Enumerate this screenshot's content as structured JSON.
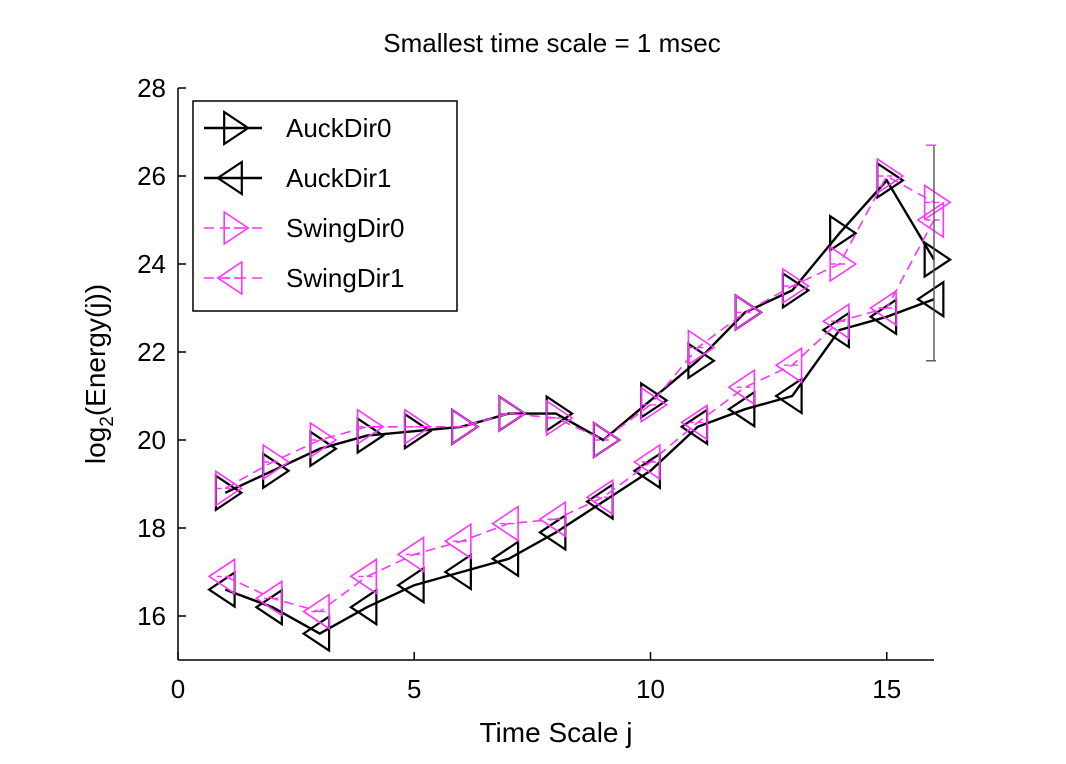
{
  "chart_data": {
    "type": "line",
    "title": "Smallest time scale = 1 msec",
    "xlabel": "Time Scale j",
    "ylabel_main": "log",
    "ylabel_sub": "2",
    "ylabel_rest": "(Energy(j))",
    "xlim": [
      0,
      16
    ],
    "ylim": [
      15,
      28
    ],
    "xticks": [
      0,
      5,
      10,
      15
    ],
    "yticks": [
      16,
      18,
      20,
      22,
      24,
      26,
      28
    ],
    "grid": false,
    "legend_position": "top-left",
    "series": [
      {
        "name": "AuckDir0",
        "color": "#000000",
        "dashed": false,
        "marker": "triangle-right",
        "x": [
          1,
          2,
          3,
          4,
          5,
          6,
          7,
          8,
          9,
          10,
          11,
          12,
          13,
          14,
          15,
          16
        ],
        "y": [
          18.8,
          19.3,
          19.8,
          20.1,
          20.2,
          20.3,
          20.6,
          20.6,
          20.0,
          20.9,
          21.8,
          22.9,
          23.4,
          24.7,
          25.9,
          24.1
        ]
      },
      {
        "name": "AuckDir1",
        "color": "#000000",
        "dashed": false,
        "marker": "triangle-left",
        "x": [
          1,
          2,
          3,
          4,
          5,
          6,
          7,
          8,
          9,
          10,
          11,
          12,
          13,
          14,
          15,
          16
        ],
        "y": [
          16.6,
          16.2,
          15.6,
          16.2,
          16.7,
          17.0,
          17.3,
          17.9,
          18.6,
          19.3,
          20.3,
          20.7,
          21.0,
          22.5,
          22.8,
          23.2
        ]
      },
      {
        "name": "SwingDir0",
        "color": "#ff33ff",
        "dashed": true,
        "marker": "triangle-right",
        "x": [
          1,
          2,
          3,
          4,
          5,
          6,
          7,
          8,
          9,
          10,
          11,
          12,
          13,
          14,
          15,
          16
        ],
        "y": [
          18.9,
          19.5,
          20.0,
          20.3,
          20.3,
          20.3,
          20.6,
          20.5,
          20.0,
          20.8,
          22.1,
          22.9,
          23.5,
          24.0,
          26.0,
          25.4
        ]
      },
      {
        "name": "SwingDir1",
        "color": "#ff33ff",
        "dashed": true,
        "marker": "triangle-left",
        "x": [
          1,
          2,
          3,
          4,
          5,
          6,
          7,
          8,
          9,
          10,
          11,
          12,
          13,
          14,
          15,
          16
        ],
        "y": [
          16.9,
          16.4,
          16.1,
          16.9,
          17.4,
          17.7,
          18.1,
          18.2,
          18.7,
          19.5,
          20.4,
          21.2,
          21.7,
          22.7,
          23.0,
          25.0
        ]
      }
    ],
    "error_bar": {
      "x": 16,
      "ylow": 21.8,
      "yhigh": 26.7
    }
  }
}
